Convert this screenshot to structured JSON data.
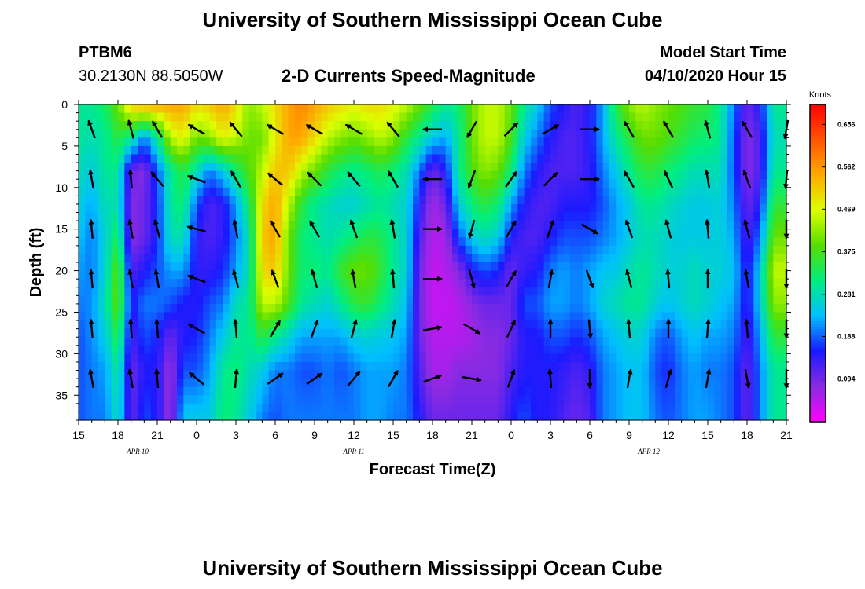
{
  "header": {
    "title": "University of Southern Mississippi Ocean Cube",
    "station_id": "PTBM6",
    "station_coords": "30.2130N 88.5050W",
    "subtitle": "2-D Currents Speed-Magnitude",
    "model_start_label": "Model Start Time",
    "model_start_value": "04/10/2020 Hour 15"
  },
  "footer": {
    "title": "University of Southern Mississippi Ocean Cube"
  },
  "chart_data": {
    "type": "heatmap",
    "title": "2-D Currents Speed-Magnitude",
    "xlabel": "Forecast Time(Z)",
    "ylabel": "Depth (ft)",
    "x_range_hours": [
      0,
      54
    ],
    "ylim": [
      0,
      38
    ],
    "y_ticks": [
      0,
      5,
      10,
      15,
      20,
      25,
      30,
      35
    ],
    "x_ticks": [
      {
        "hour": 0,
        "label": "15"
      },
      {
        "hour": 3,
        "label": "18"
      },
      {
        "hour": 6,
        "label": "21"
      },
      {
        "hour": 9,
        "label": "0"
      },
      {
        "hour": 12,
        "label": "3"
      },
      {
        "hour": 15,
        "label": "6"
      },
      {
        "hour": 18,
        "label": "9"
      },
      {
        "hour": 21,
        "label": "12"
      },
      {
        "hour": 24,
        "label": "15"
      },
      {
        "hour": 27,
        "label": "18"
      },
      {
        "hour": 30,
        "label": "21"
      },
      {
        "hour": 33,
        "label": "0"
      },
      {
        "hour": 36,
        "label": "3"
      },
      {
        "hour": 39,
        "label": "6"
      },
      {
        "hour": 42,
        "label": "9"
      },
      {
        "hour": 45,
        "label": "12"
      },
      {
        "hour": 48,
        "label": "15"
      },
      {
        "hour": 51,
        "label": "18"
      },
      {
        "hour": 54,
        "label": "21"
      }
    ],
    "day_labels": [
      {
        "hour": 4.5,
        "label": "APR 10"
      },
      {
        "hour": 21,
        "label": "APR 11"
      },
      {
        "hour": 43.5,
        "label": "APR 12"
      }
    ],
    "colorbar": {
      "unit": "Knots",
      "range": [
        0.0,
        0.7
      ],
      "tick_values": [
        0.656,
        0.562,
        0.469,
        0.375,
        0.281,
        0.188,
        0.094
      ],
      "tick_labels": [
        "0.656",
        "0.562",
        "0.469",
        "0.375",
        "0.281",
        "0.188",
        "0.094"
      ],
      "colors": [
        "#ff00ff",
        "#8a2be2",
        "#1a1aff",
        "#00bfff",
        "#00ee80",
        "#55dd00",
        "#ddff00",
        "#ffaa00",
        "#ff5500",
        "#ff0000"
      ]
    },
    "speed_profile_hourly": [
      {
        "hour": 0,
        "speeds": [
          0.3,
          0.3,
          0.28,
          0.26,
          0.24,
          0.22,
          0.2,
          0.18,
          0.18,
          0.18
        ]
      },
      {
        "hour": 1,
        "speeds": [
          0.3,
          0.28,
          0.25,
          0.22,
          0.2,
          0.2,
          0.21,
          0.21,
          0.2,
          0.2
        ]
      },
      {
        "hour": 2,
        "speeds": [
          0.33,
          0.3,
          0.3,
          0.28,
          0.26,
          0.26,
          0.28,
          0.25,
          0.22,
          0.2
        ]
      },
      {
        "hour": 3,
        "speeds": [
          0.4,
          0.35,
          0.3,
          0.28,
          0.34,
          0.4,
          0.4,
          0.35,
          0.3,
          0.28
        ]
      },
      {
        "hour": 4,
        "speeds": [
          0.52,
          0.3,
          0.1,
          0.08,
          0.08,
          0.12,
          0.15,
          0.12,
          0.1,
          0.1
        ]
      },
      {
        "hour": 5,
        "speeds": [
          0.55,
          0.2,
          0.08,
          0.1,
          0.1,
          0.15,
          0.2,
          0.18,
          0.15,
          0.18
        ]
      },
      {
        "hour": 6,
        "speeds": [
          0.55,
          0.3,
          0.18,
          0.16,
          0.16,
          0.18,
          0.2,
          0.16,
          0.15,
          0.15
        ]
      },
      {
        "hour": 7,
        "speeds": [
          0.55,
          0.45,
          0.3,
          0.3,
          0.28,
          0.22,
          0.18,
          0.1,
          0.06,
          0.06
        ]
      },
      {
        "hour": 8,
        "speeds": [
          0.55,
          0.48,
          0.35,
          0.32,
          0.28,
          0.22,
          0.15,
          0.15,
          0.18,
          0.25
        ]
      },
      {
        "hour": 9,
        "speeds": [
          0.5,
          0.4,
          0.28,
          0.18,
          0.14,
          0.14,
          0.15,
          0.16,
          0.18,
          0.25
        ]
      },
      {
        "hour": 10,
        "speeds": [
          0.52,
          0.42,
          0.2,
          0.12,
          0.12,
          0.14,
          0.18,
          0.2,
          0.22,
          0.25
        ]
      },
      {
        "hour": 11,
        "speeds": [
          0.55,
          0.48,
          0.25,
          0.14,
          0.14,
          0.16,
          0.2,
          0.25,
          0.3,
          0.32
        ]
      },
      {
        "hour": 12,
        "speeds": [
          0.5,
          0.45,
          0.32,
          0.22,
          0.2,
          0.22,
          0.28,
          0.3,
          0.32,
          0.3
        ]
      },
      {
        "hour": 13,
        "speeds": [
          0.42,
          0.4,
          0.38,
          0.32,
          0.28,
          0.28,
          0.3,
          0.3,
          0.28,
          0.25
        ]
      },
      {
        "hour": 14,
        "speeds": [
          0.45,
          0.4,
          0.45,
          0.5,
          0.52,
          0.5,
          0.45,
          0.35,
          0.25,
          0.2
        ]
      },
      {
        "hour": 15,
        "speeds": [
          0.5,
          0.48,
          0.52,
          0.55,
          0.55,
          0.52,
          0.45,
          0.3,
          0.2,
          0.18
        ]
      },
      {
        "hour": 16,
        "speeds": [
          0.55,
          0.55,
          0.52,
          0.45,
          0.4,
          0.4,
          0.38,
          0.26,
          0.2,
          0.2
        ]
      },
      {
        "hour": 17,
        "speeds": [
          0.58,
          0.55,
          0.45,
          0.35,
          0.32,
          0.32,
          0.3,
          0.22,
          0.18,
          0.2
        ]
      },
      {
        "hour": 18,
        "speeds": [
          0.55,
          0.5,
          0.4,
          0.3,
          0.3,
          0.32,
          0.28,
          0.22,
          0.18,
          0.2
        ]
      },
      {
        "hour": 19,
        "speeds": [
          0.52,
          0.45,
          0.35,
          0.28,
          0.28,
          0.3,
          0.26,
          0.22,
          0.2,
          0.2
        ]
      },
      {
        "hour": 20,
        "speeds": [
          0.5,
          0.42,
          0.32,
          0.26,
          0.3,
          0.36,
          0.3,
          0.22,
          0.18,
          0.2
        ]
      },
      {
        "hour": 21,
        "speeds": [
          0.48,
          0.4,
          0.3,
          0.26,
          0.32,
          0.4,
          0.35,
          0.25,
          0.2,
          0.2
        ]
      },
      {
        "hour": 22,
        "speeds": [
          0.5,
          0.42,
          0.32,
          0.28,
          0.35,
          0.4,
          0.36,
          0.26,
          0.22,
          0.22
        ]
      },
      {
        "hour": 23,
        "speeds": [
          0.5,
          0.45,
          0.34,
          0.3,
          0.34,
          0.36,
          0.32,
          0.25,
          0.22,
          0.22
        ]
      },
      {
        "hour": 24,
        "speeds": [
          0.48,
          0.42,
          0.32,
          0.28,
          0.3,
          0.3,
          0.28,
          0.24,
          0.22,
          0.2
        ]
      },
      {
        "hour": 25,
        "speeds": [
          0.45,
          0.35,
          0.28,
          0.26,
          0.26,
          0.26,
          0.24,
          0.22,
          0.2,
          0.2
        ]
      },
      {
        "hour": 26,
        "speeds": [
          0.4,
          0.3,
          0.2,
          0.15,
          0.12,
          0.1,
          0.1,
          0.1,
          0.12,
          0.15
        ]
      },
      {
        "hour": 27,
        "speeds": [
          0.35,
          0.25,
          0.1,
          0.06,
          0.05,
          0.04,
          0.04,
          0.05,
          0.06,
          0.1
        ]
      },
      {
        "hour": 28,
        "speeds": [
          0.3,
          0.22,
          0.15,
          0.1,
          0.06,
          0.05,
          0.04,
          0.05,
          0.06,
          0.1
        ]
      },
      {
        "hour": 29,
        "speeds": [
          0.32,
          0.3,
          0.3,
          0.25,
          0.18,
          0.08,
          0.05,
          0.05,
          0.08,
          0.1
        ]
      },
      {
        "hour": 30,
        "speeds": [
          0.4,
          0.4,
          0.38,
          0.32,
          0.25,
          0.15,
          0.08,
          0.06,
          0.08,
          0.1
        ]
      },
      {
        "hour": 31,
        "speeds": [
          0.45,
          0.45,
          0.42,
          0.35,
          0.28,
          0.18,
          0.1,
          0.08,
          0.08,
          0.1
        ]
      },
      {
        "hour": 32,
        "speeds": [
          0.45,
          0.45,
          0.4,
          0.32,
          0.25,
          0.16,
          0.1,
          0.08,
          0.08,
          0.1
        ]
      },
      {
        "hour": 33,
        "speeds": [
          0.4,
          0.38,
          0.32,
          0.22,
          0.15,
          0.1,
          0.1,
          0.1,
          0.12,
          0.15
        ]
      },
      {
        "hour": 34,
        "speeds": [
          0.3,
          0.25,
          0.2,
          0.15,
          0.12,
          0.14,
          0.18,
          0.15,
          0.15,
          0.18
        ]
      },
      {
        "hour": 35,
        "speeds": [
          0.25,
          0.2,
          0.15,
          0.12,
          0.12,
          0.15,
          0.18,
          0.15,
          0.15,
          0.15
        ]
      },
      {
        "hour": 36,
        "speeds": [
          0.18,
          0.15,
          0.12,
          0.12,
          0.15,
          0.2,
          0.22,
          0.18,
          0.15,
          0.15
        ]
      },
      {
        "hour": 37,
        "speeds": [
          0.15,
          0.12,
          0.12,
          0.15,
          0.18,
          0.22,
          0.22,
          0.18,
          0.14,
          0.12
        ]
      },
      {
        "hour": 38,
        "speeds": [
          0.12,
          0.12,
          0.12,
          0.15,
          0.18,
          0.2,
          0.2,
          0.16,
          0.12,
          0.1
        ]
      },
      {
        "hour": 39,
        "speeds": [
          0.15,
          0.15,
          0.14,
          0.15,
          0.18,
          0.22,
          0.22,
          0.18,
          0.14,
          0.12
        ]
      },
      {
        "hour": 40,
        "speeds": [
          0.22,
          0.22,
          0.2,
          0.18,
          0.2,
          0.24,
          0.26,
          0.22,
          0.2,
          0.2
        ]
      },
      {
        "hour": 41,
        "speeds": [
          0.35,
          0.3,
          0.25,
          0.22,
          0.22,
          0.25,
          0.28,
          0.24,
          0.22,
          0.22
        ]
      },
      {
        "hour": 42,
        "speeds": [
          0.42,
          0.35,
          0.3,
          0.25,
          0.25,
          0.28,
          0.3,
          0.26,
          0.24,
          0.24
        ]
      },
      {
        "hour": 43,
        "speeds": [
          0.45,
          0.4,
          0.35,
          0.3,
          0.28,
          0.3,
          0.3,
          0.26,
          0.24,
          0.24
        ]
      },
      {
        "hour": 44,
        "speeds": [
          0.42,
          0.4,
          0.35,
          0.3,
          0.28,
          0.28,
          0.26,
          0.2,
          0.18,
          0.2
        ]
      },
      {
        "hour": 45,
        "speeds": [
          0.4,
          0.38,
          0.32,
          0.28,
          0.26,
          0.26,
          0.24,
          0.18,
          0.16,
          0.18
        ]
      },
      {
        "hour": 46,
        "speeds": [
          0.38,
          0.35,
          0.3,
          0.26,
          0.25,
          0.26,
          0.26,
          0.22,
          0.2,
          0.2
        ]
      },
      {
        "hour": 47,
        "speeds": [
          0.36,
          0.33,
          0.28,
          0.25,
          0.25,
          0.28,
          0.28,
          0.24,
          0.22,
          0.22
        ]
      },
      {
        "hour": 48,
        "speeds": [
          0.35,
          0.32,
          0.28,
          0.25,
          0.25,
          0.26,
          0.26,
          0.22,
          0.2,
          0.22
        ]
      },
      {
        "hour": 49,
        "speeds": [
          0.3,
          0.3,
          0.28,
          0.26,
          0.26,
          0.26,
          0.24,
          0.22,
          0.2,
          0.2
        ]
      },
      {
        "hour": 50,
        "speeds": [
          0.2,
          0.18,
          0.18,
          0.2,
          0.22,
          0.24,
          0.22,
          0.2,
          0.18,
          0.18
        ]
      },
      {
        "hour": 51,
        "speeds": [
          0.1,
          0.08,
          0.08,
          0.1,
          0.12,
          0.14,
          0.14,
          0.12,
          0.1,
          0.1
        ]
      },
      {
        "hour": 52,
        "speeds": [
          0.15,
          0.12,
          0.12,
          0.15,
          0.2,
          0.25,
          0.25,
          0.22,
          0.2,
          0.2
        ]
      },
      {
        "hour": 53,
        "speeds": [
          0.3,
          0.28,
          0.3,
          0.35,
          0.4,
          0.45,
          0.42,
          0.35,
          0.3,
          0.3
        ]
      },
      {
        "hour": 54,
        "speeds": [
          0.3,
          0.28,
          0.3,
          0.35,
          0.4,
          0.45,
          0.42,
          0.35,
          0.3,
          0.3
        ]
      }
    ],
    "profile_depths_ft": [
      0,
      4,
      8,
      12,
      16,
      20,
      24,
      28,
      32,
      38
    ],
    "vector_depths_ft": [
      3,
      9,
      15,
      21,
      27,
      33
    ],
    "vectors_hourly": [
      {
        "hour": 1,
        "deg": [
          340,
          350,
          355,
          355,
          355,
          350
        ]
      },
      {
        "hour": 4,
        "deg": [
          345,
          355,
          350,
          350,
          355,
          350
        ]
      },
      {
        "hour": 6,
        "deg": [
          330,
          320,
          345,
          350,
          355,
          355
        ]
      },
      {
        "hour": 9,
        "deg": [
          300,
          290,
          285,
          290,
          300,
          310
        ]
      },
      {
        "hour": 12,
        "deg": [
          320,
          330,
          350,
          345,
          355,
          5
        ]
      },
      {
        "hour": 15,
        "deg": [
          300,
          310,
          330,
          340,
          30,
          55
        ]
      },
      {
        "hour": 18,
        "deg": [
          300,
          315,
          330,
          345,
          20,
          55
        ]
      },
      {
        "hour": 21,
        "deg": [
          300,
          320,
          340,
          350,
          15,
          40
        ]
      },
      {
        "hour": 24,
        "deg": [
          320,
          330,
          350,
          355,
          10,
          30
        ]
      },
      {
        "hour": 27,
        "deg": [
          270,
          270,
          90,
          90,
          80,
          70
        ]
      },
      {
        "hour": 30,
        "deg": [
          210,
          200,
          195,
          165,
          120,
          100
        ]
      },
      {
        "hour": 33,
        "deg": [
          45,
          35,
          30,
          30,
          25,
          20
        ]
      },
      {
        "hour": 36,
        "deg": [
          60,
          45,
          20,
          10,
          0,
          355
        ]
      },
      {
        "hour": 39,
        "deg": [
          90,
          90,
          120,
          160,
          175,
          180
        ]
      },
      {
        "hour": 42,
        "deg": [
          330,
          330,
          340,
          345,
          355,
          10
        ]
      },
      {
        "hour": 45,
        "deg": [
          330,
          335,
          345,
          355,
          0,
          15
        ]
      },
      {
        "hour": 48,
        "deg": [
          345,
          350,
          355,
          0,
          5,
          10
        ]
      },
      {
        "hour": 51,
        "deg": [
          330,
          340,
          345,
          350,
          355,
          170
        ]
      },
      {
        "hour": 54,
        "deg": [
          190,
          185,
          180,
          180,
          180,
          180
        ]
      }
    ]
  }
}
